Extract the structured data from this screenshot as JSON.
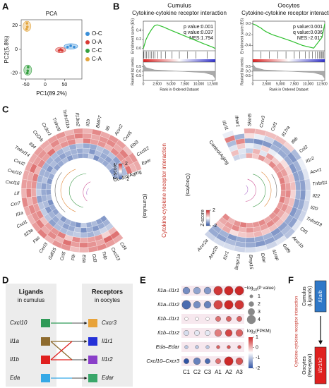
{
  "panel_letters": [
    "A",
    "B",
    "C",
    "D",
    "E",
    "F"
  ],
  "chart_data": [
    {
      "type": "scatter",
      "title": "PCA",
      "x_label": "PC1(89.2%)",
      "y_label": "PC2(5.8%)",
      "xlim": [
        -62,
        95
      ],
      "ylim": [
        -25,
        25
      ],
      "xticks": [
        -50,
        0,
        50
      ],
      "yticks": [
        -20,
        0,
        20
      ],
      "series": [
        {
          "name": "O-C",
          "color": "#3a8fd9",
          "x": [
            58,
            66,
            75
          ],
          "y": [
            2,
            3,
            2
          ]
        },
        {
          "name": "O-A",
          "color": "#d83a34",
          "x": [
            36,
            40,
            44
          ],
          "y": [
            -1,
            0,
            -1
          ]
        },
        {
          "name": "C-C",
          "color": "#35a040",
          "x": [
            -44,
            -45,
            -46
          ],
          "y": [
            -15,
            -18,
            -20
          ]
        },
        {
          "name": "C-A",
          "color": "#e3a43b",
          "x": [
            -48,
            -46,
            -47
          ],
          "y": [
            17,
            19,
            22
          ]
        }
      ]
    },
    {
      "type": "gsea",
      "title": "Cumulus",
      "subtitle": "Cytokine-cytokine receptor interaction",
      "stats": [
        "p value:0.001",
        "q value:0.037",
        "NES:1.794"
      ],
      "y_label": "Enrichment score (ES)",
      "metric_label": "Ranked list metric",
      "x_label": "Rank in Ordered Dataset",
      "xlim": [
        0,
        13000
      ],
      "xticks": [
        0,
        {
          "value": 2500,
          "label": "2,500"
        },
        {
          "value": 5000,
          "label": "5,000"
        },
        {
          "value": 7500,
          "label": "7,500"
        },
        {
          "value": 10000,
          "label": "10,000"
        },
        {
          "value": 12500,
          "label": "12,500"
        }
      ],
      "ylim": [
        -0.05,
        0.6
      ],
      "yticks": [
        {
          "value": 0,
          "label": "0.0"
        },
        0.2,
        0.4
      ],
      "color": "#2fc02f",
      "x": [
        0,
        500,
        1000,
        1500,
        2000,
        2500,
        3500,
        5000,
        7000,
        9000,
        11000,
        12500,
        13000
      ],
      "values": [
        0,
        0.2,
        0.32,
        0.42,
        0.5,
        0.52,
        0.48,
        0.4,
        0.3,
        0.2,
        0.1,
        0.03,
        0
      ],
      "hits": [
        100,
        300,
        600,
        900,
        1200,
        1500,
        1800,
        2100,
        2600,
        3200,
        4000,
        5200,
        6500,
        8000,
        9500,
        11500
      ],
      "metric_ylim": [
        -1,
        1
      ],
      "metric_yticks": [
        -0.5,
        {
          "value": 0,
          "label": "0.0"
        },
        0.5
      ],
      "metric_x": [
        0,
        500,
        2000,
        6500,
        11000,
        12500,
        13000
      ],
      "metric_values": [
        0.8,
        0.4,
        0.15,
        0,
        -0.15,
        -0.4,
        -0.8
      ]
    },
    {
      "type": "gsea",
      "title": "Oocytes",
      "subtitle": "Cytokine-cytokine receptor interaction",
      "stats": [
        "p value:0.001",
        "q value:0.036",
        "NES:-2.017"
      ],
      "y_label": "Enrichment score (ES)",
      "metric_label": "Ranked list metric",
      "x_label": "Rank in Ordered Dataset",
      "xlim": [
        0,
        13000
      ],
      "xticks": [
        0,
        {
          "value": 2500,
          "label": "2,500"
        },
        {
          "value": 5000,
          "label": "5,000"
        },
        {
          "value": 7500,
          "label": "7,500"
        },
        {
          "value": 10000,
          "label": "10,000"
        },
        {
          "value": 12500,
          "label": "12,500"
        }
      ],
      "ylim": [
        -0.5,
        0.05
      ],
      "yticks": [
        -0.4,
        -0.2,
        {
          "value": 0,
          "label": "0.0"
        }
      ],
      "color": "#2fc02f",
      "x": [
        0,
        500,
        1000,
        1500,
        2000,
        2500,
        3500,
        5000,
        7000,
        9000,
        11000,
        12500,
        13000
      ],
      "values": [
        0,
        -0.02,
        -0.05,
        -0.08,
        -0.12,
        -0.15,
        -0.2,
        -0.25,
        -0.32,
        -0.4,
        -0.45,
        -0.25,
        0
      ],
      "hits": [
        1500,
        3000,
        4500,
        6000,
        7500,
        8500,
        9500,
        10200,
        10800,
        11300,
        11700,
        12000,
        12200,
        12400,
        12600,
        12800
      ],
      "metric_ylim": [
        -1,
        1
      ],
      "metric_yticks": [
        -0.5,
        {
          "value": 0,
          "label": "0.0"
        },
        0.5
      ],
      "metric_x": [
        0,
        500,
        2000,
        6500,
        11000,
        12500,
        13000
      ],
      "metric_values": [
        0.8,
        0.4,
        0.15,
        0,
        -0.15,
        -0.4,
        -0.8
      ]
    },
    {
      "type": "circular_heatmap",
      "label": "(Cumulus)",
      "rings": [
        "Control",
        "Aging"
      ],
      "legend_title": "Z-score",
      "zticks": [
        -2,
        2
      ],
      "genes": [
        "Cd4",
        "Cxcl13",
        "Tslp",
        "Cd3",
        "Eda",
        "Pilr",
        "Ccl5",
        "Gdf15",
        "Cxcl3",
        "Fas",
        "Il23a",
        "Cxcl1",
        "Il1a",
        "Ccr7",
        "Lif",
        "Cxcl16",
        "Cxcl10",
        "Cxcl2",
        "Tnfrsf14",
        "Il34",
        "Ccl2rb",
        "Cx3cr1",
        "Tnfrsf9",
        "Tnfrsf11a",
        "Il13ra2",
        "Il1b",
        "BMP7",
        "Il6",
        "Acvr2",
        "Cxcl5",
        "Ebi3",
        "Cxcl12",
        "Epor"
      ],
      "values": [
        [
          -1.2,
          -0.9,
          -0.6,
          0.7,
          1.3,
          0.8
        ],
        [
          -1.1,
          -1.0,
          -0.5,
          0.4,
          1.4,
          0.9
        ],
        [
          -0.8,
          -1.2,
          -0.7,
          1.0,
          0.8,
          1.1
        ],
        [
          -1.0,
          -0.9,
          -0.9,
          0.9,
          1.0,
          1.0
        ],
        [
          -0.6,
          -1.3,
          -0.8,
          0.8,
          1.2,
          0.7
        ],
        [
          -1.3,
          -0.7,
          -0.6,
          1.1,
          0.9,
          0.6
        ],
        [
          -1.0,
          -1.0,
          -0.7,
          0.5,
          1.3,
          1.0
        ],
        [
          -0.9,
          -1.1,
          -0.8,
          1.2,
          0.7,
          1.0
        ],
        [
          -1.2,
          -0.8,
          -0.8,
          1.0,
          1.1,
          0.7
        ],
        [
          -0.7,
          -1.0,
          -1.1,
          0.9,
          0.8,
          1.2
        ],
        [
          -1.1,
          -0.9,
          -0.7,
          0.6,
          1.2,
          0.9
        ],
        [
          -1.0,
          -1.2,
          -0.6,
          1.1,
          1.0,
          0.7
        ],
        [
          -1.3,
          -0.8,
          -0.7,
          0.9,
          1.1,
          0.8
        ],
        [
          -0.8,
          -0.9,
          -1.1,
          1.0,
          0.7,
          1.1
        ],
        [
          -1.1,
          -1.0,
          -0.6,
          0.8,
          1.2,
          0.7
        ],
        [
          -0.9,
          -1.1,
          -0.8,
          1.0,
          0.9,
          0.9
        ],
        [
          -1.2,
          -0.7,
          -0.9,
          1.2,
          0.8,
          0.8
        ],
        [
          -1.0,
          -0.9,
          -0.9,
          0.7,
          1.3,
          0.8
        ],
        [
          -0.7,
          -1.2,
          -0.9,
          1.1,
          0.9,
          0.8
        ],
        [
          -1.1,
          -0.8,
          -0.9,
          0.9,
          1.0,
          0.9
        ],
        [
          -1.0,
          -1.0,
          -0.8,
          1.3,
          0.7,
          0.8
        ],
        [
          -0.8,
          -1.1,
          -0.9,
          0.8,
          1.1,
          0.9
        ],
        [
          -1.2,
          -0.9,
          -0.7,
          1.0,
          0.8,
          1.0
        ],
        [
          -0.9,
          -0.9,
          -1.0,
          1.1,
          1.0,
          0.7
        ],
        [
          -1.1,
          -1.0,
          -0.7,
          0.6,
          1.2,
          1.0
        ],
        [
          -1.0,
          -0.8,
          -1.0,
          1.2,
          0.9,
          0.7
        ],
        [
          -0.6,
          -1.2,
          -1.0,
          0.9,
          0.8,
          1.1
        ],
        [
          -1.3,
          -0.8,
          -0.7,
          1.0,
          1.0,
          0.8
        ],
        [
          -0.9,
          -1.0,
          -0.9,
          0.7,
          1.1,
          1.0
        ],
        [
          -1.0,
          -1.1,
          -0.7,
          1.1,
          0.8,
          0.9
        ],
        [
          -0.8,
          -0.9,
          -1.1,
          1.0,
          1.2,
          0.6
        ],
        [
          -1.2,
          -0.8,
          -0.8,
          0.9,
          0.9,
          1.0
        ],
        [
          -1.0,
          -1.0,
          -0.8,
          1.3,
          0.7,
          0.8
        ]
      ]
    },
    {
      "type": "circular_heatmap",
      "label": "(Oocytes)",
      "rings": [
        "Aging",
        "Control"
      ],
      "legend_title": "Z-score",
      "zticks": [
        -2,
        2
      ],
      "genes": [
        "Il1rl1",
        "Ifnar1",
        "Skint5",
        "Cxcr3",
        "Csf1",
        "Il17ra",
        "Ifitb",
        "Ccl2",
        "Il1r2",
        "Acvr1",
        "Tnfsf11",
        "Il22",
        "Il20",
        "Tnfrsf19",
        "Ctf1",
        "Acvr1b",
        "Gdf9",
        "Il1rap",
        "Edar",
        "Bmp15",
        "Bmpr1a",
        "Il1r1",
        "Acvr2b",
        "Acvr2a"
      ],
      "values": [
        [
          -0.5,
          0.6,
          -0.3,
          -0.8,
          1.2,
          -0.2
        ],
        [
          -0.4,
          -0.3,
          0.5,
          1.1,
          -0.9,
          0.0
        ],
        [
          0.8,
          -0.6,
          -0.2,
          -1.1,
          0.3,
          0.8
        ],
        [
          0.5,
          0.7,
          -0.4,
          -1.3,
          -0.2,
          0.7
        ],
        [
          1.0,
          -0.3,
          0.4,
          -1.2,
          -0.5,
          0.6
        ],
        [
          0.6,
          0.9,
          -0.2,
          -0.9,
          -1.0,
          0.6
        ],
        [
          1.1,
          0.5,
          -0.1,
          -1.0,
          -0.9,
          0.4
        ],
        [
          0.9,
          0.8,
          0.3,
          -1.0,
          -1.2,
          -0.8
        ],
        [
          1.0,
          0.9,
          0.4,
          -1.2,
          -0.9,
          -0.2
        ],
        [
          1.2,
          0.7,
          0.5,
          -1.1,
          -1.0,
          -0.3
        ],
        [
          1.1,
          0.9,
          0.6,
          -1.0,
          -1.1,
          -0.5
        ],
        [
          1.0,
          1.1,
          0.4,
          -0.9,
          -1.2,
          -0.4
        ],
        [
          1.2,
          0.8,
          0.6,
          -1.1,
          -1.0,
          -0.5
        ],
        [
          0.9,
          1.0,
          0.7,
          -1.2,
          -0.9,
          -0.5
        ],
        [
          1.1,
          0.8,
          0.5,
          -1.0,
          -1.1,
          -0.3
        ],
        [
          1.0,
          1.0,
          0.6,
          -1.1,
          -0.8,
          -0.7
        ],
        [
          0.8,
          1.1,
          0.6,
          -1.2,
          -1.0,
          -0.3
        ],
        [
          1.1,
          0.9,
          0.5,
          -0.9,
          -1.1,
          -0.5
        ],
        [
          1.0,
          0.8,
          0.7,
          -1.0,
          -1.2,
          -0.3
        ],
        [
          0.9,
          1.0,
          0.6,
          -1.1,
          -1.0,
          -0.4
        ],
        [
          1.2,
          0.7,
          0.5,
          -1.0,
          -0.9,
          -0.5
        ],
        [
          1.0,
          1.1,
          0.3,
          -1.2,
          -0.8,
          -0.4
        ],
        [
          0.7,
          0.9,
          0.8,
          -0.9,
          -1.1,
          -0.4
        ],
        [
          1.1,
          0.8,
          0.6,
          -1.0,
          -1.0,
          -0.5
        ]
      ]
    },
    {
      "type": "dotplot",
      "rows": [
        "Il1a–Il1r1",
        "Il1a–Il1r2",
        "Il1b–Il1r1",
        "Il1b–Il1r2",
        "Eda–Edar",
        "Cxcl10–Cxcr3"
      ],
      "columns": [
        "C1",
        "C2",
        "C3",
        "A1",
        "A2",
        "A3"
      ],
      "sizes": [
        [
          3,
          3,
          3,
          4,
          4,
          4
        ],
        [
          4,
          3,
          3,
          4,
          4,
          4
        ],
        [
          1,
          1,
          1,
          2,
          2,
          2
        ],
        [
          2,
          2,
          2,
          3,
          3,
          3
        ],
        [
          1,
          1,
          1,
          1,
          1,
          1
        ],
        [
          2,
          3,
          2,
          2,
          4,
          3
        ]
      ],
      "colors": [
        [
          -1.5,
          -1.3,
          -1.4,
          0.9,
          1,
          1
        ],
        [
          -1.8,
          -1.5,
          -1.6,
          0.8,
          1,
          0.9
        ],
        [
          -0.5,
          -0.5,
          -0.5,
          0.5,
          0.6,
          0.6
        ],
        [
          -0.8,
          -0.7,
          -0.7,
          0.4,
          0.8,
          0.6
        ],
        [
          -1,
          -1,
          -1,
          0.6,
          0.7,
          0.7
        ],
        [
          -2,
          -1.6,
          -1.8,
          0.5,
          1,
          0.7
        ]
      ],
      "size_title": [
        "−log",
        "10",
        "(P value)"
      ],
      "size_ticks": [
        1,
        2,
        3,
        4
      ],
      "color_title": [
        "log",
        "2",
        "(FPKM)"
      ],
      "color_ticks": [
        1,
        0,
        -1,
        -2
      ]
    }
  ],
  "center_label": "Cytokine-cytokine receptor interaction",
  "ligand_diagram": {
    "ligands_title": "Ligands",
    "ligands_sub": "in cumulus",
    "receptors_title": "Receptors",
    "receptors_sub": "in oocytes",
    "ligands": [
      {
        "name": "Cxcl10",
        "color": "#2f9a57"
      },
      {
        "name": "Il1a",
        "color": "#8e6b2e"
      },
      {
        "name": "Il1b",
        "color": "#e0201f"
      },
      {
        "name": "Eda",
        "color": "#36a9e6"
      }
    ],
    "receptors": [
      {
        "name": "Cxcr3",
        "color": "#e8a33a"
      },
      {
        "name": "Il1r1",
        "color": "#2431d8"
      },
      {
        "name": "Il1r2",
        "color": "#8a3fc9"
      },
      {
        "name": "Edar",
        "color": "#3aa76a"
      }
    ]
  },
  "model": {
    "side_label": "Cytokine-cytokine receptor interaction",
    "top_label": [
      "Cumulus",
      "(Ligands)"
    ],
    "top_box": "Il1a/b",
    "bottom_label": [
      "Oocytes",
      "(Receptor)"
    ],
    "bottom_box": "Il1r1/r2"
  }
}
